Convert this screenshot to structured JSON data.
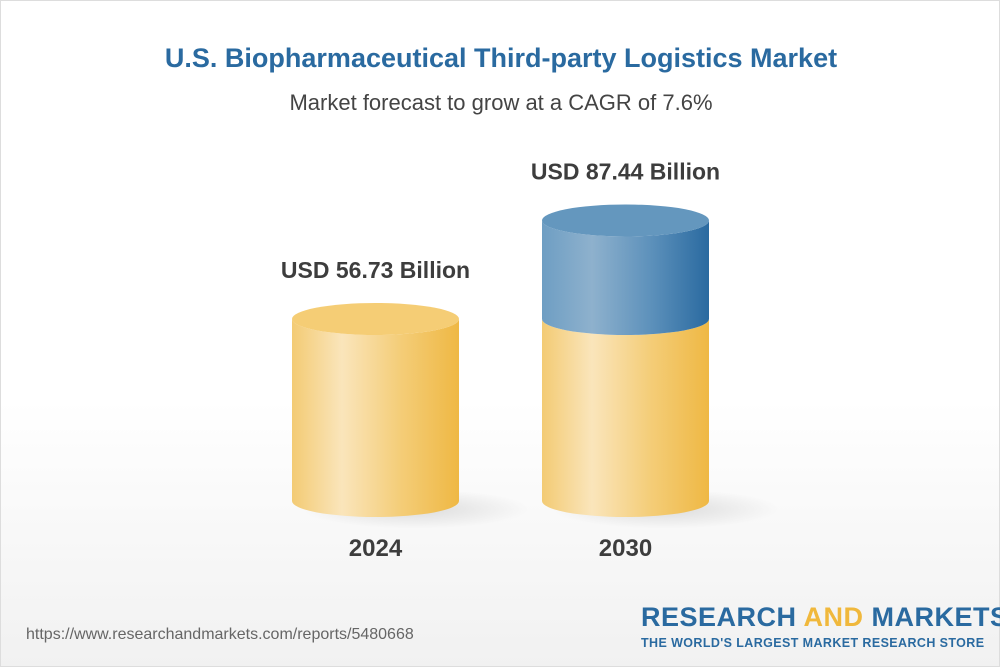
{
  "title": "U.S. Biopharmaceutical Third-party Logistics Market",
  "subtitle": "Market forecast to grow at a CAGR of 7.6%",
  "chart_data": {
    "type": "bar",
    "style": "3d-cylinder",
    "categories": [
      "2024",
      "2030"
    ],
    "values": [
      56.73,
      87.44
    ],
    "data_labels": [
      "USD 56.73 Billion",
      "USD 87.44 Billion"
    ],
    "unit": "USD Billion",
    "cagr": "7.6%",
    "colors": {
      "base": "#f2c25a",
      "growth": "#3a74a6"
    },
    "grid": false,
    "legend": "none"
  },
  "footer": {
    "url": "https://www.researchandmarkets.com/reports/5480668",
    "logo_part1": "RESEARCH ",
    "logo_part2": "AND",
    "logo_part3": " MARKETS",
    "tagline": "THE WORLD'S LARGEST MARKET RESEARCH STORE"
  }
}
